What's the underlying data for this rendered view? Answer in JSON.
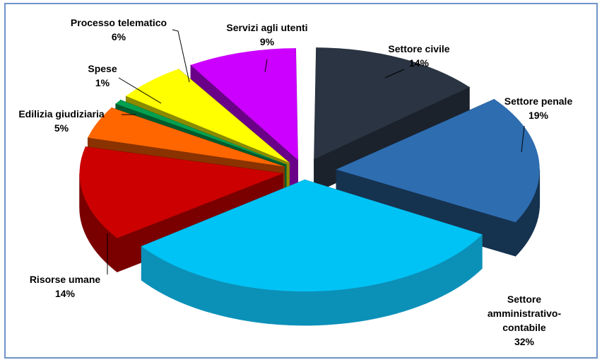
{
  "chart_data": {
    "type": "pie",
    "style": "3d-exploded",
    "title": "",
    "slices": [
      {
        "label": "Settore civile",
        "value": 14,
        "value_label": "14%",
        "color": "#2a3442",
        "side": "#1b222c"
      },
      {
        "label": "Settore penale",
        "value": 19,
        "value_label": "19%",
        "color": "#2e6db0",
        "side": "#15324f"
      },
      {
        "label": "Settore amministrativo-contabile",
        "value": 32,
        "value_label": "32%",
        "color": "#00c3f5",
        "side": "#0b90b8"
      },
      {
        "label": "Risorse umane",
        "value": 14,
        "value_label": "14%",
        "color": "#cc0000",
        "side": "#7a0000"
      },
      {
        "label": "Edilizia giudiziaria",
        "value": 5,
        "value_label": "5%",
        "color": "#ff6600",
        "side": "#8a3300"
      },
      {
        "label": "Spese",
        "value": 1,
        "value_label": "1%",
        "color": "#00a050",
        "side": "#005a2c"
      },
      {
        "label": "Processo telematico",
        "value": 6,
        "value_label": "6%",
        "color": "#ffff00",
        "side": "#8a8a00"
      },
      {
        "label": "Servizi agli utenti",
        "value": 9,
        "value_label": "9%",
        "color": "#cc00ff",
        "side": "#6a0088"
      }
    ],
    "legend": "none"
  }
}
